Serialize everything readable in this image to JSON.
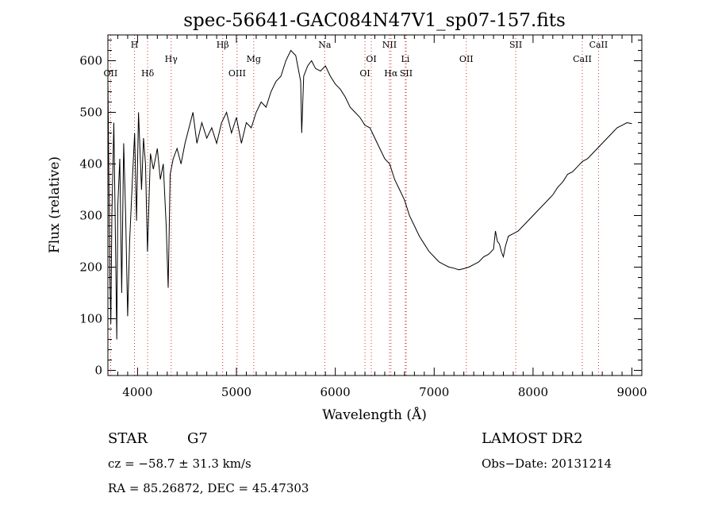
{
  "chart_data": {
    "type": "line",
    "title": "spec-56641-GAC084N47V1_sp07-157.fits",
    "xlabel": "Wavelength (Å)",
    "ylabel": "Flux (relative)",
    "xlim": [
      3700,
      9100
    ],
    "ylim": [
      -10,
      650
    ],
    "x_ticks": [
      4000,
      5000,
      6000,
      7000,
      8000,
      9000
    ],
    "y_ticks": [
      0,
      100,
      200,
      300,
      400,
      500,
      600
    ],
    "series": [
      {
        "points": [
          [
            3700,
            560
          ],
          [
            3710,
            380
          ],
          [
            3720,
            180
          ],
          [
            3730,
            90
          ],
          [
            3740,
            300
          ],
          [
            3760,
            480
          ],
          [
            3780,
            200
          ],
          [
            3790,
            60
          ],
          [
            3800,
            320
          ],
          [
            3820,
            410
          ],
          [
            3840,
            150
          ],
          [
            3860,
            440
          ],
          [
            3880,
            300
          ],
          [
            3900,
            105
          ],
          [
            3920,
            250
          ],
          [
            3950,
            380
          ],
          [
            3970,
            460
          ],
          [
            3990,
            290
          ],
          [
            4010,
            500
          ],
          [
            4040,
            350
          ],
          [
            4060,
            450
          ],
          [
            4080,
            400
          ],
          [
            4100,
            230
          ],
          [
            4130,
            420
          ],
          [
            4160,
            390
          ],
          [
            4200,
            430
          ],
          [
            4230,
            370
          ],
          [
            4260,
            400
          ],
          [
            4290,
            280
          ],
          [
            4310,
            160
          ],
          [
            4330,
            380
          ],
          [
            4360,
            410
          ],
          [
            4400,
            430
          ],
          [
            4440,
            400
          ],
          [
            4480,
            440
          ],
          [
            4520,
            470
          ],
          [
            4560,
            500
          ],
          [
            4600,
            440
          ],
          [
            4650,
            480
          ],
          [
            4700,
            450
          ],
          [
            4750,
            470
          ],
          [
            4800,
            440
          ],
          [
            4850,
            480
          ],
          [
            4900,
            500
          ],
          [
            4950,
            460
          ],
          [
            5000,
            490
          ],
          [
            5050,
            440
          ],
          [
            5100,
            480
          ],
          [
            5150,
            470
          ],
          [
            5200,
            500
          ],
          [
            5250,
            520
          ],
          [
            5300,
            510
          ],
          [
            5350,
            540
          ],
          [
            5400,
            560
          ],
          [
            5450,
            570
          ],
          [
            5500,
            600
          ],
          [
            5550,
            620
          ],
          [
            5600,
            610
          ],
          [
            5650,
            560
          ],
          [
            5660,
            460
          ],
          [
            5680,
            570
          ],
          [
            5720,
            590
          ],
          [
            5760,
            600
          ],
          [
            5800,
            585
          ],
          [
            5850,
            580
          ],
          [
            5900,
            590
          ],
          [
            5950,
            570
          ],
          [
            6000,
            555
          ],
          [
            6050,
            545
          ],
          [
            6100,
            530
          ],
          [
            6150,
            510
          ],
          [
            6200,
            500
          ],
          [
            6250,
            490
          ],
          [
            6300,
            475
          ],
          [
            6350,
            470
          ],
          [
            6400,
            450
          ],
          [
            6450,
            430
          ],
          [
            6500,
            410
          ],
          [
            6550,
            400
          ],
          [
            6600,
            370
          ],
          [
            6650,
            350
          ],
          [
            6700,
            330
          ],
          [
            6750,
            300
          ],
          [
            6800,
            280
          ],
          [
            6850,
            260
          ],
          [
            6900,
            245
          ],
          [
            6950,
            230
          ],
          [
            7000,
            220
          ],
          [
            7050,
            210
          ],
          [
            7100,
            205
          ],
          [
            7150,
            200
          ],
          [
            7200,
            198
          ],
          [
            7250,
            195
          ],
          [
            7300,
            197
          ],
          [
            7350,
            200
          ],
          [
            7400,
            205
          ],
          [
            7450,
            210
          ],
          [
            7500,
            220
          ],
          [
            7550,
            225
          ],
          [
            7600,
            235
          ],
          [
            7620,
            270
          ],
          [
            7640,
            250
          ],
          [
            7660,
            245
          ],
          [
            7680,
            230
          ],
          [
            7700,
            220
          ],
          [
            7720,
            240
          ],
          [
            7750,
            260
          ],
          [
            7800,
            265
          ],
          [
            7850,
            270
          ],
          [
            7900,
            280
          ],
          [
            7950,
            290
          ],
          [
            8000,
            300
          ],
          [
            8050,
            310
          ],
          [
            8100,
            320
          ],
          [
            8150,
            330
          ],
          [
            8200,
            340
          ],
          [
            8250,
            355
          ],
          [
            8300,
            365
          ],
          [
            8350,
            380
          ],
          [
            8400,
            385
          ],
          [
            8450,
            395
          ],
          [
            8500,
            405
          ],
          [
            8550,
            410
          ],
          [
            8600,
            420
          ],
          [
            8650,
            430
          ],
          [
            8700,
            440
          ],
          [
            8750,
            450
          ],
          [
            8800,
            460
          ],
          [
            8850,
            470
          ],
          [
            8900,
            475
          ],
          [
            8950,
            480
          ],
          [
            9000,
            478
          ]
        ]
      }
    ],
    "lines": [
      {
        "label": "OII",
        "x": 3727,
        "row": 2
      },
      {
        "label": "H",
        "x": 3969,
        "row": 0
      },
      {
        "label": "Hδ",
        "x": 4102,
        "row": 2
      },
      {
        "label": "Hγ",
        "x": 4340,
        "row": 1
      },
      {
        "label": "Hβ",
        "x": 4861,
        "row": 0
      },
      {
        "label": "OIII",
        "x": 5007,
        "row": 2
      },
      {
        "label": "Mg",
        "x": 5175,
        "row": 1
      },
      {
        "label": "Na",
        "x": 5893,
        "row": 0
      },
      {
        "label": "OI",
        "x": 6300,
        "row": 2
      },
      {
        "label": "OI",
        "x": 6364,
        "row": 1
      },
      {
        "label": "NII",
        "x": 6548,
        "row": 0
      },
      {
        "label": "Hα",
        "x": 6563,
        "row": 2
      },
      {
        "label": "Li",
        "x": 6708,
        "row": 1
      },
      {
        "label": "SII",
        "x": 6717,
        "row": 2
      },
      {
        "label": "OII",
        "x": 7325,
        "row": 1
      },
      {
        "label": "SII",
        "x": 7825,
        "row": 0
      },
      {
        "label": "CaII",
        "x": 8498,
        "row": 1
      },
      {
        "label": "CaII",
        "x": 8662,
        "row": 0
      }
    ]
  },
  "footer": {
    "class_label": "STAR",
    "subclass": "G7",
    "survey": "LAMOST DR2",
    "cz": "cz = −58.7 ± 31.3 km/s",
    "obs_date": "Obs−Date: 20131214",
    "coords": "RA =  85.26872, DEC =  45.47303"
  }
}
